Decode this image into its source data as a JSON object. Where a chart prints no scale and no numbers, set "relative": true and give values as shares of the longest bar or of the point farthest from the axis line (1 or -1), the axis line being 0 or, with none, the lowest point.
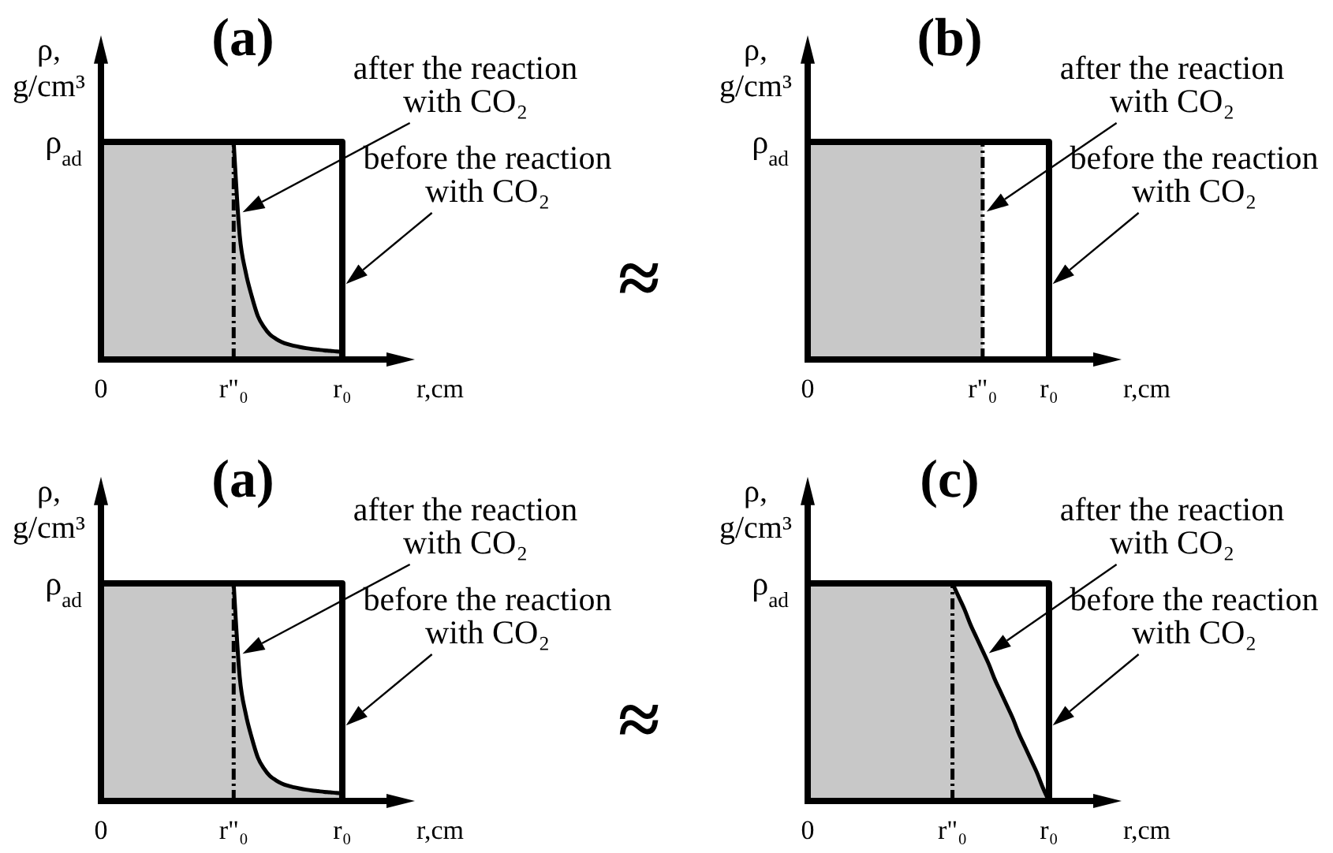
{
  "chart_data": [
    {
      "type": "area",
      "title": "(a)",
      "xlabel": "r,cm",
      "ylabel": "ρ, g/cm³",
      "relative": true,
      "categories": [
        "0",
        null,
        null,
        null,
        null,
        null,
        null,
        null,
        null,
        null,
        null,
        null,
        null,
        null,
        null,
        null,
        null,
        null,
        null,
        null,
        null,
        null,
        "r\"₀",
        null,
        null,
        null,
        null,
        null,
        null,
        null,
        null,
        null,
        null,
        null,
        null,
        null,
        null,
        null,
        null,
        null,
        "r₀",
        null
      ],
      "series": [
        {
          "name": "after the reaction with CO₂",
          "color": "#c8c8c8",
          "values": [
            1,
            1,
            1,
            1,
            1,
            1,
            1,
            1,
            1,
            1,
            1,
            1,
            1,
            1,
            1,
            1,
            1,
            1,
            1,
            1,
            1,
            1,
            1,
            0.57,
            0.4,
            0.29,
            0.2,
            0.15,
            0.115,
            0.095,
            0.08,
            0.07,
            0.063,
            0.057,
            0.052,
            0.048,
            0.045,
            0.042,
            0.04,
            0.037,
            0.035,
            null
          ]
        },
        {
          "name": "before the reaction with CO₂",
          "type": "step",
          "color": "#000000",
          "values": [
            1,
            1,
            1,
            1,
            1,
            1,
            1,
            1,
            1,
            1,
            1,
            1,
            1,
            1,
            1,
            1,
            1,
            1,
            1,
            1,
            1,
            1,
            1,
            1,
            1,
            1,
            1,
            1,
            1,
            1,
            1,
            1,
            1,
            1,
            1,
            1,
            1,
            1,
            1,
            1,
            0,
            0
          ]
        }
      ],
      "ref_lines": [
        {
          "axis": "x",
          "value": "r\"₀",
          "line_style": "dashed",
          "color": "#000000"
        }
      ],
      "annotations": [
        "ρ$_{ad}$",
        "≈"
      ]
    },
    {
      "type": "area",
      "title": "(b)",
      "xlabel": "r,cm",
      "ylabel": "ρ, g/cm³",
      "relative": true,
      "categories": [
        "0",
        null,
        null,
        null,
        null,
        null,
        null,
        null,
        null,
        null,
        null,
        null,
        null,
        null,
        null,
        null,
        null,
        null,
        null,
        null,
        null,
        null,
        null,
        null,
        null,
        null,
        null,
        null,
        null,
        "r\"₀",
        null,
        null,
        null,
        null,
        null,
        null,
        null,
        null,
        null,
        null,
        "r₀",
        null
      ],
      "series": [
        {
          "name": "after the reaction with CO₂",
          "color": "#c8c8c8",
          "values": [
            1,
            1,
            1,
            1,
            1,
            1,
            1,
            1,
            1,
            1,
            1,
            1,
            1,
            1,
            1,
            1,
            1,
            1,
            1,
            1,
            1,
            1,
            1,
            1,
            1,
            1,
            1,
            1,
            1,
            1,
            null,
            null,
            null,
            null,
            null,
            null,
            null,
            null,
            null,
            null,
            null,
            null
          ]
        },
        {
          "name": "before the reaction with CO₂",
          "type": "step",
          "color": "#000000",
          "values": [
            1,
            1,
            1,
            1,
            1,
            1,
            1,
            1,
            1,
            1,
            1,
            1,
            1,
            1,
            1,
            1,
            1,
            1,
            1,
            1,
            1,
            1,
            1,
            1,
            1,
            1,
            1,
            1,
            1,
            1,
            1,
            1,
            1,
            1,
            1,
            1,
            1,
            1,
            1,
            1,
            0,
            0
          ]
        }
      ],
      "ref_lines": [
        {
          "axis": "x",
          "value": "r\"₀",
          "line_style": "dashed",
          "color": "#000000"
        }
      ],
      "annotations": [
        "ρ$_{ad}$"
      ]
    },
    {
      "type": "area",
      "title": "(a)",
      "xlabel": "r,cm",
      "ylabel": "ρ, g/cm³",
      "relative": true,
      "categories": [
        "0",
        null,
        null,
        null,
        null,
        null,
        null,
        null,
        null,
        null,
        null,
        null,
        null,
        null,
        null,
        null,
        null,
        null,
        null,
        null,
        null,
        null,
        "r\"₀",
        null,
        null,
        null,
        null,
        null,
        null,
        null,
        null,
        null,
        null,
        null,
        null,
        null,
        null,
        null,
        null,
        null,
        "r₀",
        null
      ],
      "series": [
        {
          "name": "after the reaction with CO₂",
          "color": "#c8c8c8",
          "values": [
            1,
            1,
            1,
            1,
            1,
            1,
            1,
            1,
            1,
            1,
            1,
            1,
            1,
            1,
            1,
            1,
            1,
            1,
            1,
            1,
            1,
            1,
            1,
            0.57,
            0.4,
            0.29,
            0.2,
            0.15,
            0.115,
            0.095,
            0.08,
            0.07,
            0.063,
            0.057,
            0.052,
            0.048,
            0.045,
            0.042,
            0.04,
            0.037,
            0.035,
            null
          ]
        },
        {
          "name": "before the reaction with CO₂",
          "type": "step",
          "color": "#000000",
          "values": [
            1,
            1,
            1,
            1,
            1,
            1,
            1,
            1,
            1,
            1,
            1,
            1,
            1,
            1,
            1,
            1,
            1,
            1,
            1,
            1,
            1,
            1,
            1,
            1,
            1,
            1,
            1,
            1,
            1,
            1,
            1,
            1,
            1,
            1,
            1,
            1,
            1,
            1,
            1,
            1,
            0,
            0
          ]
        }
      ],
      "ref_lines": [
        {
          "axis": "x",
          "value": "r\"₀",
          "line_style": "dashed",
          "color": "#000000"
        }
      ],
      "annotations": [
        "ρ$_{ad}$",
        "≈"
      ]
    },
    {
      "type": "area",
      "title": "(c)",
      "xlabel": "r,cm",
      "ylabel": "ρ, g/cm³",
      "relative": true,
      "categories": [
        "0",
        null,
        null,
        null,
        null,
        null,
        null,
        null,
        null,
        null,
        null,
        null,
        null,
        null,
        null,
        null,
        null,
        null,
        null,
        null,
        null,
        null,
        null,
        null,
        "r\"₀",
        null,
        null,
        null,
        null,
        null,
        null,
        null,
        null,
        null,
        null,
        null,
        null,
        null,
        null,
        null,
        "r₀",
        null
      ],
      "series": [
        {
          "name": "after the reaction with CO₂",
          "color": "#c8c8c8",
          "values": [
            1,
            1,
            1,
            1,
            1,
            1,
            1,
            1,
            1,
            1,
            1,
            1,
            1,
            1,
            1,
            1,
            1,
            1,
            1,
            1,
            1,
            1,
            1,
            1,
            1,
            0.94,
            0.88,
            0.81,
            0.75,
            0.69,
            0.63,
            0.56,
            0.5,
            0.44,
            0.38,
            0.31,
            0.25,
            0.19,
            0.13,
            0.06,
            0,
            null
          ]
        },
        {
          "name": "before the reaction with CO₂",
          "type": "step",
          "color": "#000000",
          "values": [
            1,
            1,
            1,
            1,
            1,
            1,
            1,
            1,
            1,
            1,
            1,
            1,
            1,
            1,
            1,
            1,
            1,
            1,
            1,
            1,
            1,
            1,
            1,
            1,
            1,
            1,
            1,
            1,
            1,
            1,
            1,
            1,
            1,
            1,
            1,
            1,
            1,
            1,
            1,
            1,
            0,
            0
          ]
        }
      ],
      "ref_lines": [
        {
          "axis": "x",
          "value": "r\"₀",
          "line_style": "dashed",
          "color": "#000000"
        }
      ],
      "annotations": [
        "ρ$_{ad}$"
      ]
    }
  ]
}
